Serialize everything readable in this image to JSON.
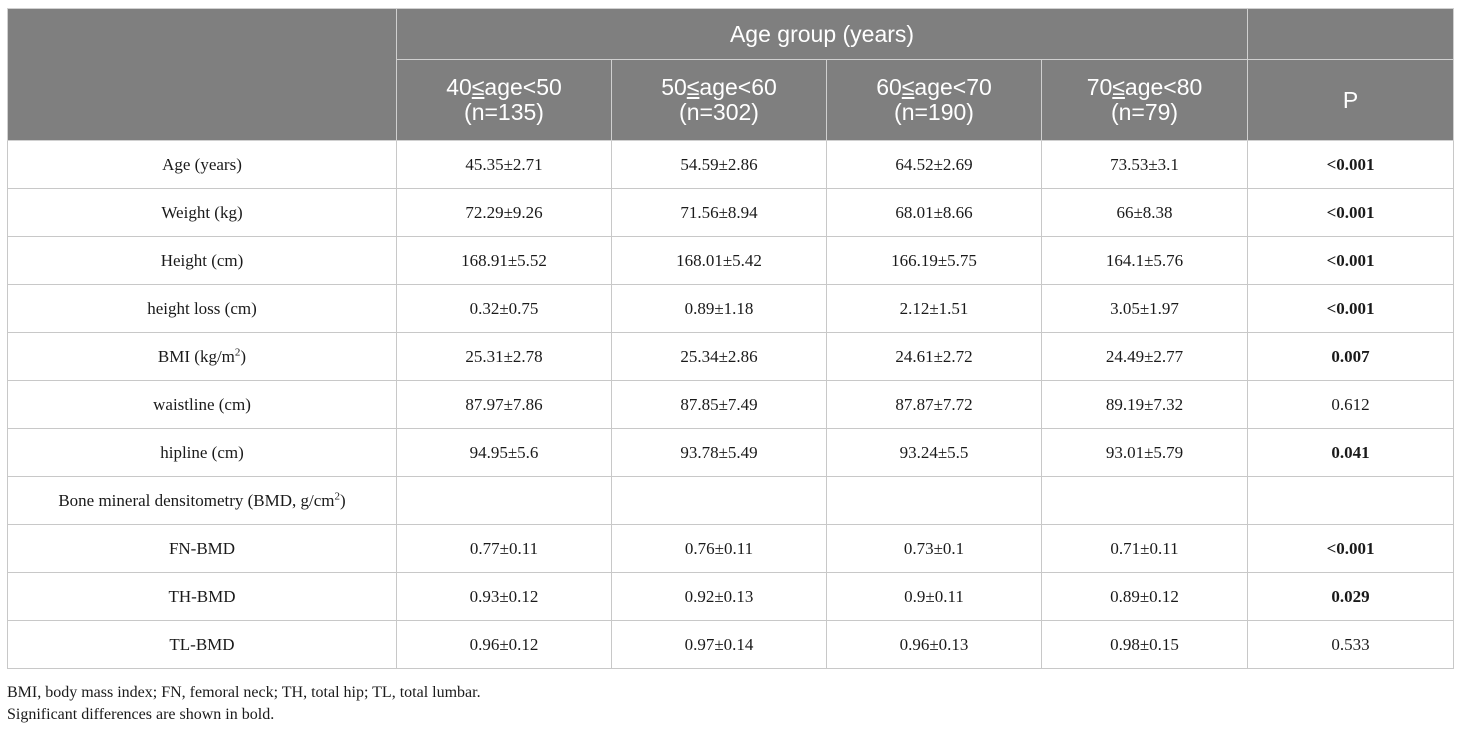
{
  "table": {
    "group_header": "Age group (years)",
    "columns": [
      {
        "range_lo": "40",
        "le": "≤",
        "range_hi": "age<50",
        "n": "(n=135)"
      },
      {
        "range_lo": "50",
        "le": "≤",
        "range_hi": "age<60",
        "n": "(n=302)"
      },
      {
        "range_lo": "60",
        "le": "≤",
        "range_hi": "age<70",
        "n": "(n=190)"
      },
      {
        "range_lo": "70",
        "le": "≤",
        "range_hi": "age<80",
        "n": "(n=79)"
      }
    ],
    "p_header": "P",
    "rows": [
      {
        "label": "Age (years)",
        "values": [
          "45.35±2.71",
          "54.59±2.86",
          "64.52±2.69",
          "73.53±3.1"
        ],
        "p": "<0.001",
        "bold": true
      },
      {
        "label": "Weight (kg)",
        "values": [
          "72.29±9.26",
          "71.56±8.94",
          "68.01±8.66",
          "66±8.38"
        ],
        "p": "<0.001",
        "bold": true
      },
      {
        "label": "Height (cm)",
        "values": [
          "168.91±5.52",
          "168.01±5.42",
          "166.19±5.75",
          "164.1±5.76"
        ],
        "p": "<0.001",
        "bold": true
      },
      {
        "label": "height loss (cm)",
        "values": [
          "0.32±0.75",
          "0.89±1.18",
          "2.12±1.51",
          "3.05±1.97"
        ],
        "p": "<0.001",
        "bold": true
      },
      {
        "label": "BMI (kg/m",
        "label_sup": "2",
        "label_after": ")",
        "values": [
          "25.31±2.78",
          "25.34±2.86",
          "24.61±2.72",
          "24.49±2.77"
        ],
        "p": "0.007",
        "bold": true
      },
      {
        "label": "waistline (cm)",
        "values": [
          "87.97±7.86",
          "87.85±7.49",
          "87.87±7.72",
          "89.19±7.32"
        ],
        "p": "0.612",
        "bold": false
      },
      {
        "label": "hipline (cm)",
        "values": [
          "94.95±5.6",
          "93.78±5.49",
          "93.24±5.5",
          "93.01±5.79"
        ],
        "p": "0.041",
        "bold": true
      },
      {
        "label": "Bone mineral densitometry (BMD, g/cm",
        "label_sup": "2",
        "label_after": ")",
        "values": [
          "",
          "",
          "",
          ""
        ],
        "p": "",
        "bold": false
      },
      {
        "label": "FN-BMD",
        "values": [
          "0.77±0.11",
          "0.76±0.11",
          "0.73±0.1",
          "0.71±0.11"
        ],
        "p": "<0.001",
        "bold": true
      },
      {
        "label": "TH-BMD",
        "values": [
          "0.93±0.12",
          "0.92±0.13",
          "0.9±0.11",
          "0.89±0.12"
        ],
        "p": "0.029",
        "bold": true
      },
      {
        "label": "TL-BMD",
        "values": [
          "0.96±0.12",
          "0.97±0.14",
          "0.96±0.13",
          "0.98±0.15"
        ],
        "p": "0.533",
        "bold": false
      }
    ]
  },
  "notes": {
    "abbreviations": "BMI, body mass index; FN, femoral neck; TH, total hip; TL, total lumbar.",
    "significance": "Significant differences are shown in bold."
  }
}
